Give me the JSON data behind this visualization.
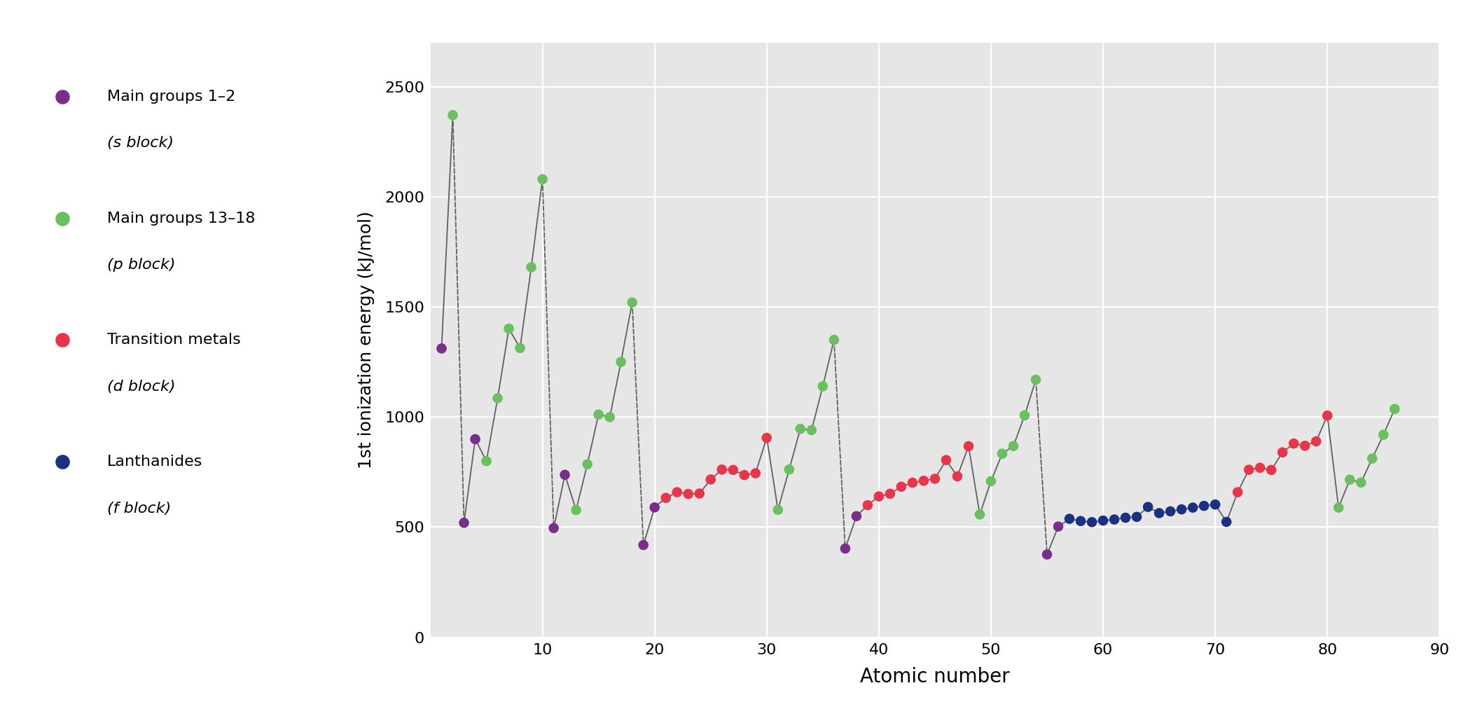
{
  "xlabel": "Atomic number",
  "ylabel": "1st ionization energy (kJ/mol)",
  "xlim": [
    0,
    90
  ],
  "ylim": [
    0,
    2700
  ],
  "yticks": [
    0,
    500,
    1000,
    1500,
    2000,
    2500
  ],
  "xticks": [
    10,
    20,
    30,
    40,
    50,
    60,
    70,
    80,
    90
  ],
  "bg_color": "#e6e6e6",
  "line_color": "#606060",
  "s_color": "#7b2d8b",
  "p_color": "#6abf5e",
  "d_color": "#e8354a",
  "f_color": "#1a3080",
  "dashed_transitions": [
    [
      2,
      3
    ],
    [
      10,
      11
    ],
    [
      18,
      19
    ],
    [
      36,
      37
    ],
    [
      54,
      55
    ]
  ],
  "data": [
    [
      1,
      1312,
      "s"
    ],
    [
      2,
      2372,
      "p"
    ],
    [
      3,
      520,
      "s"
    ],
    [
      4,
      900,
      "s"
    ],
    [
      5,
      800,
      "p"
    ],
    [
      6,
      1086,
      "p"
    ],
    [
      7,
      1402,
      "p"
    ],
    [
      8,
      1314,
      "p"
    ],
    [
      9,
      1681,
      "p"
    ],
    [
      10,
      2081,
      "p"
    ],
    [
      11,
      496,
      "s"
    ],
    [
      12,
      738,
      "s"
    ],
    [
      13,
      578,
      "p"
    ],
    [
      14,
      786,
      "p"
    ],
    [
      15,
      1012,
      "p"
    ],
    [
      16,
      1000,
      "p"
    ],
    [
      17,
      1251,
      "p"
    ],
    [
      18,
      1521,
      "p"
    ],
    [
      19,
      419,
      "s"
    ],
    [
      20,
      590,
      "s"
    ],
    [
      21,
      633,
      "d"
    ],
    [
      22,
      659,
      "d"
    ],
    [
      23,
      651,
      "d"
    ],
    [
      24,
      653,
      "d"
    ],
    [
      25,
      717,
      "d"
    ],
    [
      26,
      762,
      "d"
    ],
    [
      27,
      760,
      "d"
    ],
    [
      28,
      737,
      "d"
    ],
    [
      29,
      745,
      "d"
    ],
    [
      30,
      906,
      "d"
    ],
    [
      31,
      579,
      "p"
    ],
    [
      32,
      762,
      "p"
    ],
    [
      33,
      947,
      "p"
    ],
    [
      34,
      941,
      "p"
    ],
    [
      35,
      1140,
      "p"
    ],
    [
      36,
      1351,
      "p"
    ],
    [
      37,
      403,
      "s"
    ],
    [
      38,
      550,
      "s"
    ],
    [
      39,
      600,
      "d"
    ],
    [
      40,
      640,
      "d"
    ],
    [
      41,
      652,
      "d"
    ],
    [
      42,
      684,
      "d"
    ],
    [
      43,
      702,
      "d"
    ],
    [
      44,
      711,
      "d"
    ],
    [
      45,
      720,
      "d"
    ],
    [
      46,
      805,
      "d"
    ],
    [
      47,
      731,
      "d"
    ],
    [
      48,
      868,
      "d"
    ],
    [
      49,
      558,
      "p"
    ],
    [
      50,
      709,
      "p"
    ],
    [
      51,
      834,
      "p"
    ],
    [
      52,
      869,
      "p"
    ],
    [
      53,
      1008,
      "p"
    ],
    [
      54,
      1170,
      "p"
    ],
    [
      55,
      376,
      "s"
    ],
    [
      56,
      503,
      "s"
    ],
    [
      57,
      538,
      "f"
    ],
    [
      58,
      528,
      "f"
    ],
    [
      59,
      523,
      "f"
    ],
    [
      60,
      530,
      "f"
    ],
    [
      61,
      535,
      "f"
    ],
    [
      62,
      543,
      "f"
    ],
    [
      63,
      547,
      "f"
    ],
    [
      64,
      592,
      "f"
    ],
    [
      65,
      564,
      "f"
    ],
    [
      66,
      572,
      "f"
    ],
    [
      67,
      581,
      "f"
    ],
    [
      68,
      589,
      "f"
    ],
    [
      69,
      597,
      "f"
    ],
    [
      70,
      603,
      "f"
    ],
    [
      71,
      524,
      "f"
    ],
    [
      72,
      659,
      "d"
    ],
    [
      73,
      761,
      "d"
    ],
    [
      74,
      770,
      "d"
    ],
    [
      75,
      760,
      "d"
    ],
    [
      76,
      840,
      "d"
    ],
    [
      77,
      880,
      "d"
    ],
    [
      78,
      870,
      "d"
    ],
    [
      79,
      890,
      "d"
    ],
    [
      80,
      1007,
      "d"
    ],
    [
      81,
      589,
      "p"
    ],
    [
      82,
      716,
      "p"
    ],
    [
      83,
      703,
      "p"
    ],
    [
      84,
      812,
      "p"
    ],
    [
      85,
      920,
      "p"
    ],
    [
      86,
      1037,
      "p"
    ]
  ],
  "legend_entries": [
    {
      "line1": "Main groups 1–2",
      "line2": "(s block)",
      "color": "#7b2d8b"
    },
    {
      "line1": "Main groups 13–18",
      "line2": "(p block)",
      "color": "#6abf5e"
    },
    {
      "line1": "Transition metals",
      "line2": "(d block)",
      "color": "#e8354a"
    },
    {
      "line1": "Lanthanides",
      "line2": "(f block)",
      "color": "#1a3080"
    }
  ]
}
